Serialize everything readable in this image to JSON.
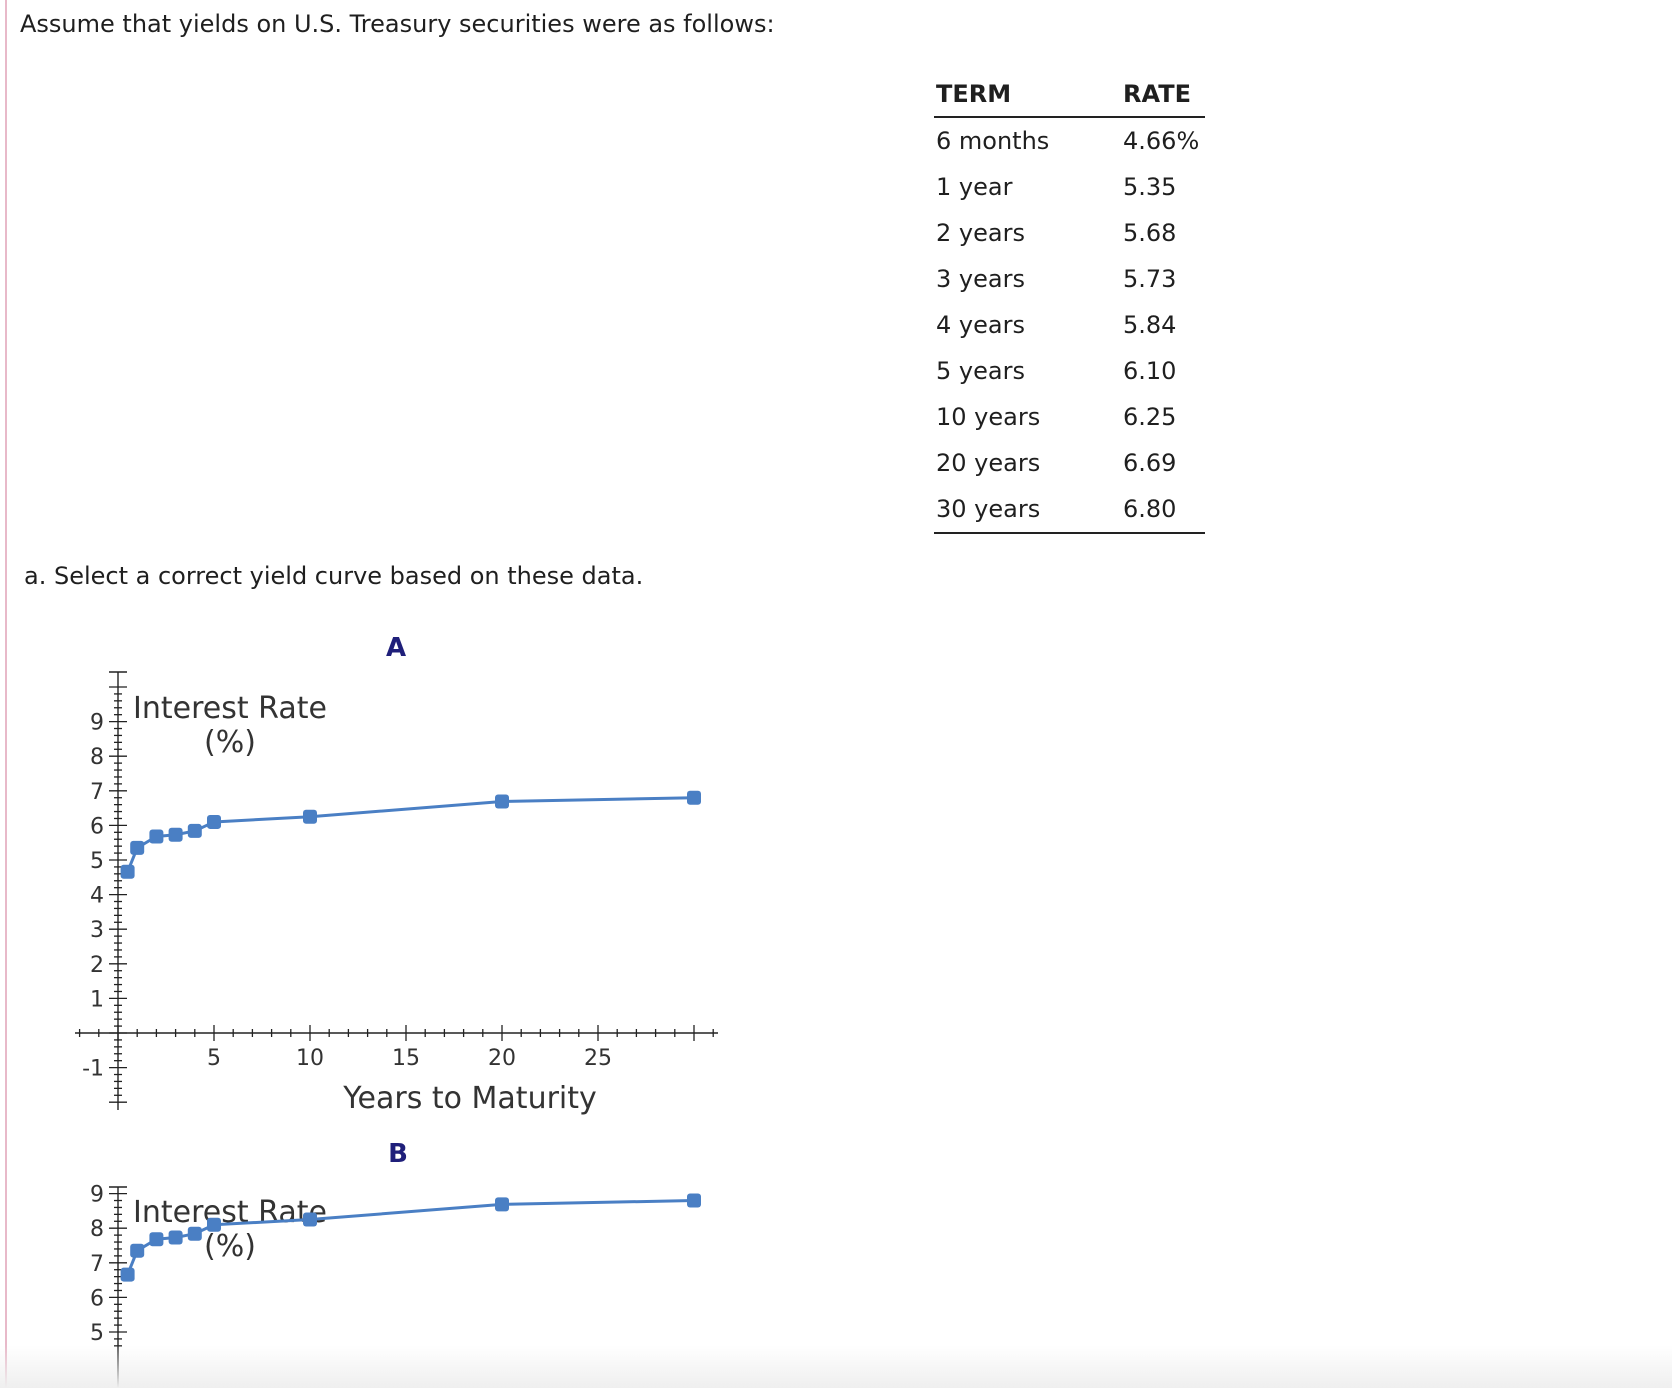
{
  "intro": "Assume that yields on U.S. Treasury securities were as follows:",
  "table": {
    "headers": [
      "TERM",
      "RATE"
    ],
    "rows": [
      [
        "6 months",
        "4.66%"
      ],
      [
        "1 year",
        "5.35"
      ],
      [
        "2 years",
        "5.68"
      ],
      [
        "3 years",
        "5.73"
      ],
      [
        "4 years",
        "5.84"
      ],
      [
        "5 years",
        "6.10"
      ],
      [
        "10 years",
        "6.25"
      ],
      [
        "20 years",
        "6.69"
      ],
      [
        "30 years",
        "6.80"
      ]
    ]
  },
  "question": "a. Select a correct yield curve based on these data.",
  "chart_data": [
    {
      "type": "line",
      "option_label": "A",
      "ylabel": "Interest Rate (%)",
      "xlabel": "Years to Maturity",
      "ylabel_lines": [
        "Interest Rate",
        "(%)"
      ],
      "x": [
        0.5,
        1,
        2,
        3,
        4,
        5,
        10,
        20,
        30
      ],
      "values": [
        4.66,
        5.35,
        5.68,
        5.73,
        5.84,
        6.1,
        6.25,
        6.69,
        6.8
      ],
      "xlim": [
        -2,
        31
      ],
      "ylim": [
        -2,
        10
      ],
      "x_ticks": [
        5,
        10,
        15,
        20,
        25
      ],
      "y_ticks": [
        -1,
        1,
        2,
        3,
        4,
        5,
        6,
        7,
        8,
        9
      ],
      "line_color": "#4a7fc4",
      "grid": false
    },
    {
      "type": "line",
      "option_label": "B",
      "ylabel": "Interest Rate (%)",
      "ylabel_lines": [
        "Interest Rate",
        "(%)"
      ],
      "x": [
        0.5,
        1,
        2,
        3,
        4,
        5,
        10,
        20,
        30
      ],
      "values": [
        6.66,
        7.35,
        7.68,
        7.73,
        7.84,
        8.1,
        8.25,
        8.69,
        8.8
      ],
      "xlim": [
        -2,
        31
      ],
      "ylim": [
        4.6,
        10
      ],
      "y_ticks": [
        5,
        6,
        7,
        8,
        9
      ],
      "line_color": "#4a7fc4",
      "grid": false
    }
  ]
}
